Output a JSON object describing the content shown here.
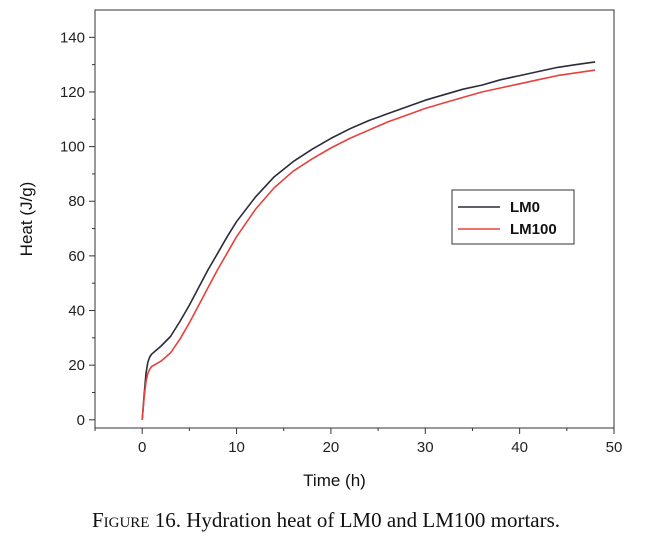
{
  "chart_data": {
    "type": "line",
    "xlabel": "Time (h)",
    "ylabel": "Heat (J/g)",
    "xlim": [
      -5,
      50
    ],
    "ylim": [
      -3,
      150
    ],
    "xticks": [
      0,
      10,
      20,
      30,
      40,
      50
    ],
    "yticks": [
      0,
      20,
      40,
      60,
      80,
      100,
      120,
      140
    ],
    "legend_position": "middle-right",
    "grid": false,
    "series": [
      {
        "name": "LM0",
        "color": "#2b2b3a",
        "x": [
          0,
          0.2,
          0.4,
          0.6,
          0.8,
          1,
          1.5,
          2,
          3,
          4,
          5,
          6,
          7,
          8,
          9,
          10,
          12,
          14,
          16,
          18,
          20,
          22,
          24,
          26,
          28,
          30,
          32,
          34,
          36,
          38,
          40,
          42,
          44,
          46,
          48
        ],
        "y": [
          0,
          9,
          17,
          21,
          23,
          24,
          25.5,
          27,
          30.5,
          36,
          42,
          48.5,
          55,
          61,
          67,
          72.5,
          81.5,
          89,
          94.5,
          99,
          103,
          106.5,
          109.5,
          112,
          114.5,
          117,
          119,
          121,
          122.5,
          124.5,
          126,
          127.5,
          129,
          130,
          131
        ]
      },
      {
        "name": "LM100",
        "color": "#e8413c",
        "x": [
          0,
          0.2,
          0.4,
          0.6,
          0.8,
          1,
          1.5,
          2,
          3,
          4,
          5,
          6,
          7,
          8,
          9,
          10,
          12,
          14,
          16,
          18,
          20,
          22,
          24,
          26,
          28,
          30,
          32,
          34,
          36,
          38,
          40,
          42,
          44,
          46,
          48
        ],
        "y": [
          0,
          8,
          14,
          17,
          18.5,
          19.5,
          20.5,
          21.5,
          24.5,
          29.5,
          35.5,
          42,
          48.5,
          55,
          61,
          67,
          77,
          85,
          91,
          95.5,
          99.5,
          103,
          106,
          109,
          111.5,
          114,
          116,
          118,
          120,
          121.5,
          123,
          124.5,
          126,
          127,
          128
        ]
      }
    ]
  },
  "caption": {
    "figure_label": "Figure 16.",
    "text": "Hydration heat of LM0 and LM100 mortars."
  }
}
